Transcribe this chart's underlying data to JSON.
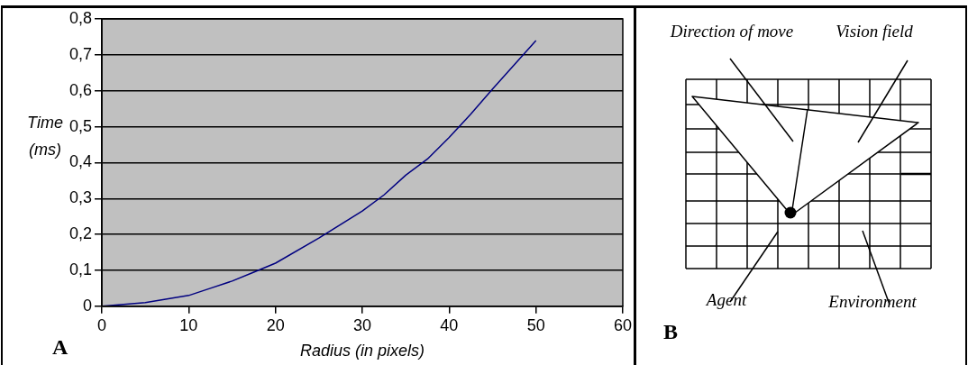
{
  "chart_data": [
    {
      "type": "line",
      "xlabel": "Radius (in pixels)",
      "ylabel": "Time (ms)",
      "annotations": [
        "A"
      ],
      "x": [
        0,
        5,
        7.5,
        10,
        12.5,
        15,
        17.5,
        20,
        25,
        30,
        32.5,
        35,
        37.5,
        40,
        42.5,
        45,
        50
      ],
      "series": [
        {
          "color": "#000080",
          "values": [
            0,
            0.01,
            0.02,
            0.03,
            0.05,
            0.07,
            0.095,
            0.12,
            0.19,
            0.265,
            0.31,
            0.365,
            0.41,
            0.47,
            0.535,
            0.605,
            0.74
          ]
        }
      ],
      "xlim": [
        0,
        60
      ],
      "xticks": [
        0,
        10,
        20,
        30,
        40,
        50,
        60
      ],
      "ylim": [
        0,
        0.8
      ],
      "yticks": [
        0,
        {
          "value": 0.1,
          "label": "0,1"
        },
        {
          "value": 0.2,
          "label": "0,2"
        },
        {
          "value": 0.3,
          "label": "0,3"
        },
        {
          "value": 0.4,
          "label": "0,4"
        },
        {
          "value": 0.5,
          "label": "0,5"
        },
        {
          "value": 0.6,
          "label": "0,6"
        },
        {
          "value": 0.7,
          "label": "0,7"
        },
        {
          "value": 0.8,
          "label": "0,8"
        }
      ],
      "grid": "y",
      "legend": false,
      "marker": "none",
      "line_style": "solid"
    },
    {
      "type": "other",
      "annotations": [
        "Direction of move",
        "Vision field",
        "Agent",
        "Environment",
        "B"
      ]
    }
  ]
}
